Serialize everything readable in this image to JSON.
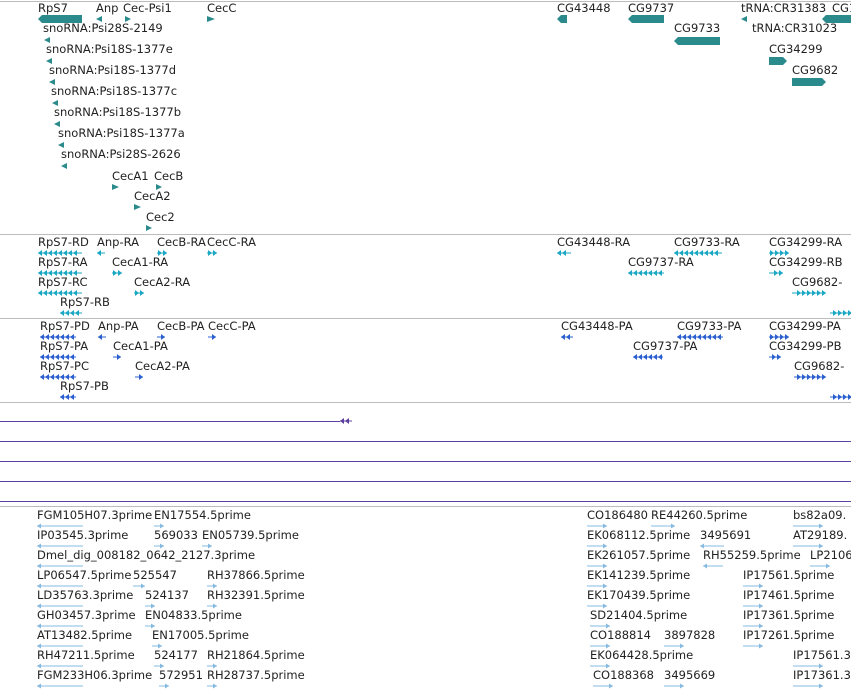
{
  "colors": {
    "gene": "#2a8a8c",
    "transcript": "#1aa7c4",
    "protein": "#2b5fd0",
    "alignment": "#5b3f9e",
    "est": "#86b9e0",
    "separator": "#bcbcbc"
  },
  "tracks": {
    "genes": {
      "labels": [
        "RpS7",
        "Anp",
        "Cec-Psi1",
        "CecC",
        "snoRNA:Psi28S-2149",
        "snoRNA:Psi18S-1377e",
        "snoRNA:Psi18S-1377d",
        "snoRNA:Psi18S-1377c",
        "snoRNA:Psi18S-1377b",
        "snoRNA:Psi18S-1377a",
        "snoRNA:Psi28S-2626",
        "CecA1",
        "CecB",
        "CecA2",
        "Cec2",
        "CG43448",
        "CG9737",
        "CG9733",
        "tRNA:CR31383",
        "CG1",
        "tRNA:CR31023",
        "CG34299",
        "CG9682"
      ]
    },
    "transcripts": {
      "labels": [
        "RpS7-RD",
        "Anp-RA",
        "CecB-RA",
        "CecC-RA",
        "RpS7-RA",
        "CecA1-RA",
        "RpS7-RC",
        "CecA2-RA",
        "RpS7-RB",
        "CG43448-RA",
        "CG9733-RA",
        "CG34299-RA",
        "CG9737-RA",
        "CG34299-RB",
        "CG9682-"
      ]
    },
    "proteins": {
      "labels": [
        "RpS7-PD",
        "Anp-PA",
        "CecB-PA",
        "CecC-PA",
        "RpS7-PA",
        "CecA1-PA",
        "RpS7-PC",
        "CecA2-PA",
        "RpS7-PB",
        "CG43448-PA",
        "CG9733-PA",
        "CG34299-PA",
        "CG9737-PA",
        "CG34299-PB",
        "CG9682-"
      ]
    },
    "ests": {
      "labels": [
        "FGM105H07.3prime",
        "EN17554.5prime",
        "IP03545.3prime",
        "569033",
        "EN05739.5prime",
        "Dmel_dig_008182_0642_2127.3prime",
        "LP06547.5prime",
        "525547",
        "RH37866.5prime",
        "LD35763.3prime",
        "524137",
        "RH32391.5prime",
        "GH03457.3prime",
        "EN04833.5prime",
        "AT13482.5prime",
        "EN17005.5prime",
        "RH47211.5prime",
        "524177",
        "RH21864.5prime",
        "FGM233H06.3prime",
        "572951",
        "RH28737.5prime",
        "CO186480",
        "RE44260.5prime",
        "bs82a09.",
        "EK068112.5prime",
        "3495691",
        "AT29189.",
        "EK261057.5prime",
        "RH55259.5prime",
        "LP2106",
        "EK141239.5prime",
        "IP17561.5prime",
        "EK170439.5prime",
        "IP17461.5prime",
        "SD21404.5prime",
        "IP17361.5prime",
        "CO188814",
        "3897828",
        "IP17261.5prime",
        "EK064428.5prime",
        "IP17561.3",
        "CO188368",
        "3495669",
        "IP17361.3"
      ]
    }
  }
}
